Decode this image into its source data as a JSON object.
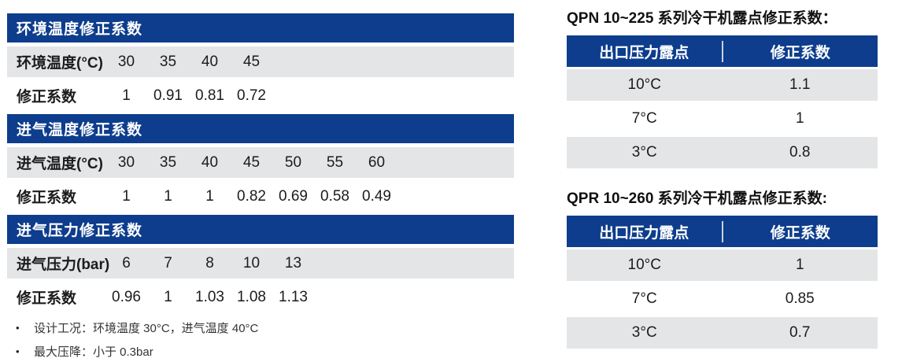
{
  "colors": {
    "header_blue": "#0d3d8c",
    "row_gray": "#e4e5e7",
    "text_dark": "#1c1c1c"
  },
  "left_tables": [
    {
      "title": "环境温度修正系数",
      "rows": [
        {
          "label": "环境温度(°C)",
          "values": [
            "30",
            "35",
            "40",
            "45"
          ]
        },
        {
          "label": "修正系数",
          "values": [
            "1",
            "0.91",
            "0.81",
            "0.72"
          ]
        }
      ]
    },
    {
      "title": "进气温度修正系数",
      "rows": [
        {
          "label": "进气温度(°C)",
          "values": [
            "30",
            "35",
            "40",
            "45",
            "50",
            "55",
            "60"
          ]
        },
        {
          "label": "修正系数",
          "values": [
            "1",
            "1",
            "1",
            "0.82",
            "0.69",
            "0.58",
            "0.49"
          ]
        }
      ]
    },
    {
      "title": "进气压力修正系数",
      "rows": [
        {
          "label": "进气压力(bar)",
          "values": [
            "6",
            "7",
            "8",
            "10",
            "13"
          ]
        },
        {
          "label": "修正系数",
          "values": [
            "0.96",
            "1",
            "1.03",
            "1.08",
            "1.13"
          ]
        }
      ]
    }
  ],
  "notes": {
    "bullet": "•",
    "items": [
      "设计工况：环境温度 30°C，进气温度 40°C",
      "最大压降：小于 0.3bar"
    ]
  },
  "right_tables": [
    {
      "title": "QPN 10~225 系列冷干机露点修正系数：",
      "columns": [
        "出口压力露点",
        "修正系数"
      ],
      "rows": [
        [
          "10°C",
          "1.1"
        ],
        [
          "7°C",
          "1"
        ],
        [
          "3°C",
          "0.8"
        ]
      ]
    },
    {
      "title": "QPR 10~260 系列冷干机露点修正系数:",
      "columns": [
        "出口压力露点",
        "修正系数"
      ],
      "rows": [
        [
          "10°C",
          "1"
        ],
        [
          "7°C",
          "0.85"
        ],
        [
          "3°C",
          "0.7"
        ]
      ]
    }
  ]
}
